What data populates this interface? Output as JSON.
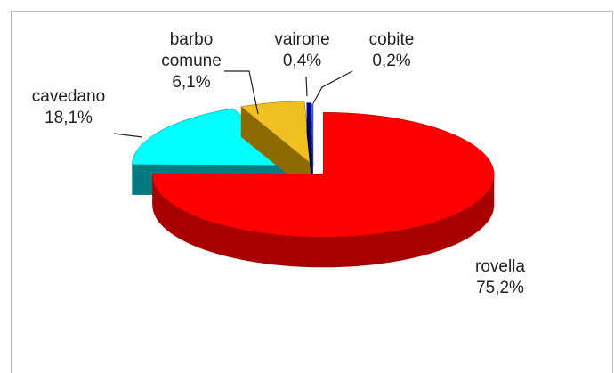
{
  "chart_data": {
    "type": "pie",
    "categories": [
      "rovella",
      "cavedano",
      "barbo comune",
      "vairone",
      "cobite"
    ],
    "values": [
      75.2,
      18.1,
      6.1,
      0.4,
      0.2
    ],
    "value_labels": [
      "75,2%",
      "18,1%",
      "6,1%",
      "0,4%",
      "0,2%"
    ],
    "colors": [
      "#ff0000",
      "#00ffff",
      "#f0c020",
      "#000099",
      "#3366ff"
    ],
    "side_colors": [
      "#a80000",
      "#007b80",
      "#8c6a00",
      "#000055",
      "#1a3380"
    ]
  }
}
